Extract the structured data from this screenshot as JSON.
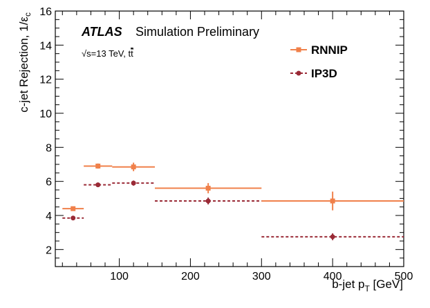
{
  "chart_data": {
    "type": "scatter",
    "experiment": "ATLAS",
    "title": "Simulation Preliminary",
    "energy_prefix": "√s=13 TeV, t",
    "energy_suffix": "t",
    "xlabel_main": "b-jet p",
    "xlabel_sub": "T",
    "xlabel_unit": " [GeV]",
    "ylabel_main": "c-jet Rejection,  1/ε",
    "ylabel_sub": "c",
    "xlim": [
      10,
      500
    ],
    "ylim": [
      1,
      16
    ],
    "xticks": [
      100,
      200,
      300,
      400,
      500
    ],
    "yticks": [
      2,
      4,
      6,
      8,
      10,
      12,
      14,
      16
    ],
    "legend_position": "top-right",
    "series": [
      {
        "name": "RNNIP",
        "color": "#f0804a",
        "linestyle": "solid",
        "marker": "square",
        "points": [
          {
            "x": 35,
            "xlo": 20,
            "xhi": 50,
            "y": 4.4,
            "yerr": 0.05
          },
          {
            "x": 70,
            "xlo": 50,
            "xhi": 90,
            "y": 6.9,
            "yerr": 0.15
          },
          {
            "x": 120,
            "xlo": 90,
            "xhi": 150,
            "y": 6.85,
            "yerr": 0.25
          },
          {
            "x": 225,
            "xlo": 150,
            "xhi": 300,
            "y": 5.6,
            "yerr": 0.3
          },
          {
            "x": 400,
            "xlo": 300,
            "xhi": 500,
            "y": 4.85,
            "yerr": 0.55
          }
        ]
      },
      {
        "name": "IP3D",
        "color": "#9a2a36",
        "linestyle": "dashed",
        "marker": "circle",
        "points": [
          {
            "x": 35,
            "xlo": 20,
            "xhi": 50,
            "y": 3.85,
            "yerr": 0.05
          },
          {
            "x": 70,
            "xlo": 50,
            "xhi": 90,
            "y": 5.8,
            "yerr": 0.1
          },
          {
            "x": 120,
            "xlo": 90,
            "xhi": 150,
            "y": 5.9,
            "yerr": 0.15
          },
          {
            "x": 225,
            "xlo": 150,
            "xhi": 300,
            "y": 4.85,
            "yerr": 0.2
          },
          {
            "x": 400,
            "xlo": 300,
            "xhi": 500,
            "y": 2.75,
            "yerr": 0.2
          }
        ]
      }
    ]
  }
}
